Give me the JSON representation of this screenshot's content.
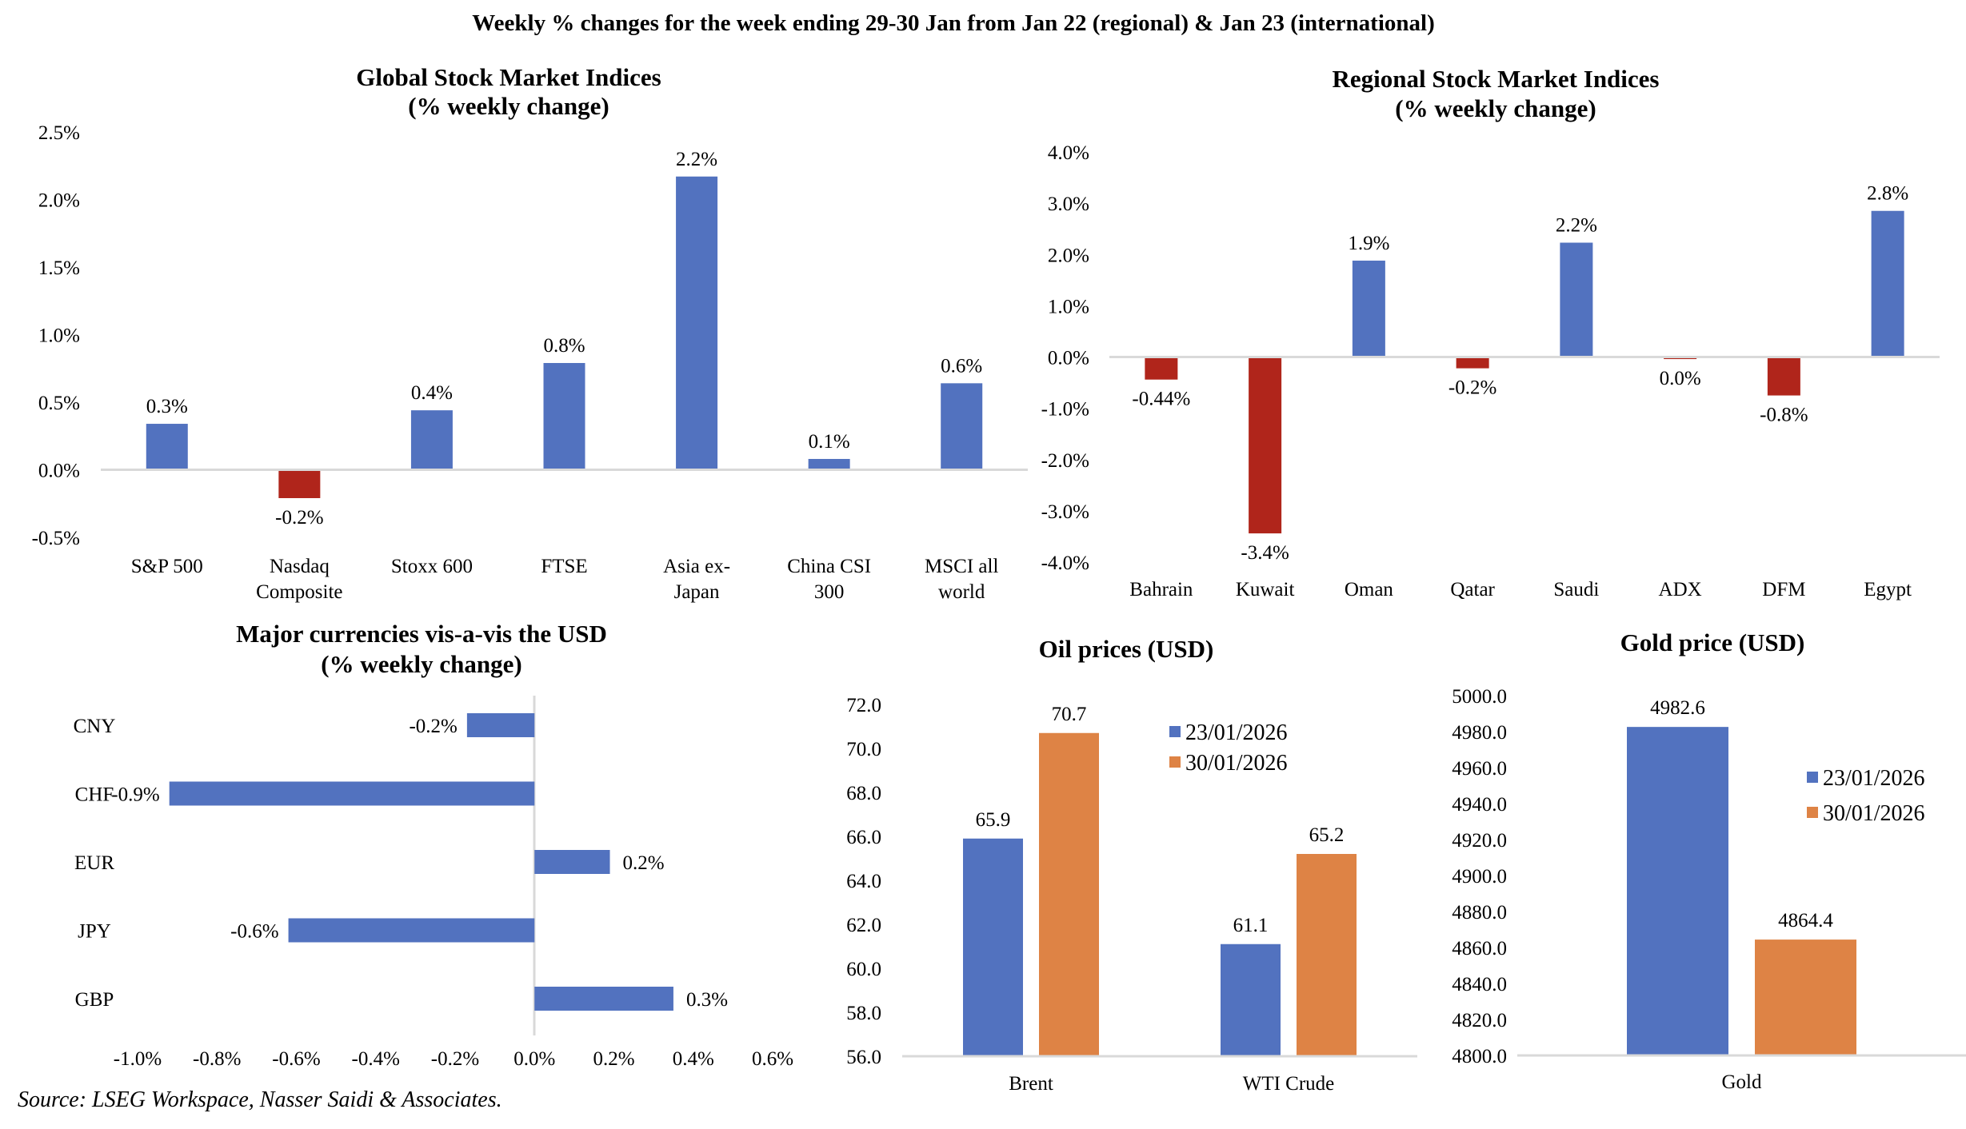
{
  "page": {
    "title": "Weekly % changes for the week ending 29-30 Jan from Jan 22 (regional) & Jan 23 (international)",
    "source": "Source: LSEG Workspace, Nasser Saidi & Associates."
  },
  "colors": {
    "positive": "#5272BF",
    "negative": "#B0251B",
    "series_1": "#5272BF",
    "series_2": "#DE8345",
    "axis": "#D9D9D9"
  },
  "chart_data": [
    {
      "id": "global",
      "type": "bar",
      "title": [
        "Global Stock Market Indices",
        "(% weekly change)"
      ],
      "categories": [
        [
          "S&P 500"
        ],
        [
          "Nasdaq",
          "Composite"
        ],
        [
          "Stoxx 600"
        ],
        [
          "FTSE"
        ],
        [
          "Asia ex-",
          "Japan"
        ],
        [
          "China CSI",
          "300"
        ],
        [
          "MSCI all",
          "world"
        ]
      ],
      "values": [
        0.34,
        -0.21,
        0.44,
        0.79,
        2.17,
        0.08,
        0.64
      ],
      "data_labels": [
        "0.3%",
        "-0.2%",
        "0.4%",
        "0.8%",
        "2.2%",
        "0.1%",
        "0.6%"
      ],
      "ylim": [
        -0.5,
        2.5
      ],
      "yticks": [
        2.5,
        2.0,
        1.5,
        1.0,
        0.5,
        0.0,
        -0.5
      ],
      "ytick_labels": [
        "2.5%",
        "2.0%",
        "1.5%",
        "1.0%",
        "0.5%",
        "0.0%",
        "-0.5%"
      ],
      "xlabel": "",
      "ylabel": "",
      "grid": false,
      "legend": "none"
    },
    {
      "id": "regional",
      "type": "bar",
      "title": [
        "Regional Stock Market Indices",
        "(% weekly change)"
      ],
      "categories": [
        [
          "Bahrain"
        ],
        [
          "Kuwait"
        ],
        [
          "Oman"
        ],
        [
          "Qatar"
        ],
        [
          "Saudi"
        ],
        [
          "ADX"
        ],
        [
          "DFM"
        ],
        [
          "Egypt"
        ]
      ],
      "values": [
        -0.44,
        -3.44,
        1.88,
        -0.22,
        2.23,
        -0.04,
        -0.75,
        2.85
      ],
      "data_labels": [
        "-0.44%",
        "-3.4%",
        "1.9%",
        "-0.2%",
        "2.2%",
        "0.0%",
        "-0.8%",
        "2.8%"
      ],
      "ylim": [
        -4.0,
        4.0
      ],
      "yticks": [
        4.0,
        3.0,
        2.0,
        1.0,
        0.0,
        -1.0,
        -2.0,
        -3.0,
        -4.0
      ],
      "ytick_labels": [
        "4.0%",
        "3.0%",
        "2.0%",
        "1.0%",
        "0.0%",
        "-1.0%",
        "-2.0%",
        "-3.0%",
        "-4.0%"
      ],
      "xlabel": "",
      "ylabel": "",
      "grid": false,
      "legend": "none"
    },
    {
      "id": "currencies",
      "type": "bar",
      "orientation": "horizontal",
      "title": [
        "Major currencies vis-a-vis the USD",
        "(% weekly change)"
      ],
      "categories": [
        "CNY",
        "CHF",
        "EUR",
        "JPY",
        "GBP"
      ],
      "values": [
        -0.17,
        -0.92,
        0.19,
        -0.62,
        0.35
      ],
      "data_labels": [
        "-0.2%",
        "-0.9%",
        "0.2%",
        "-0.6%",
        "0.3%"
      ],
      "xlim": [
        -1.0,
        0.6
      ],
      "xticks": [
        -1.0,
        -0.8,
        -0.6,
        -0.4,
        -0.2,
        0.0,
        0.2,
        0.4,
        0.6
      ],
      "xtick_labels": [
        "-1.0%",
        "-0.8%",
        "-0.6%",
        "-0.4%",
        "-0.2%",
        "0.0%",
        "0.2%",
        "0.4%",
        "0.6%"
      ],
      "xlabel": "",
      "ylabel": "",
      "grid": false,
      "legend": "none"
    },
    {
      "id": "oil",
      "type": "bar",
      "title": [
        "Oil prices (USD)"
      ],
      "categories": [
        "Brent",
        "WTI Crude"
      ],
      "series": [
        {
          "name": "23/01/2026",
          "values": [
            65.9,
            61.1
          ],
          "data_labels": [
            "65.9",
            "61.1"
          ]
        },
        {
          "name": "30/01/2026",
          "values": [
            70.7,
            65.2
          ],
          "data_labels": [
            "70.7",
            "65.2"
          ]
        }
      ],
      "ylim": [
        56.0,
        72.0
      ],
      "yticks": [
        72.0,
        70.0,
        68.0,
        66.0,
        64.0,
        62.0,
        60.0,
        58.0,
        56.0
      ],
      "ytick_labels": [
        "72.0",
        "70.0",
        "68.0",
        "66.0",
        "64.0",
        "62.0",
        "60.0",
        "58.0",
        "56.0"
      ],
      "xlabel": "",
      "ylabel": "",
      "grid": false,
      "legend": "top-right"
    },
    {
      "id": "gold",
      "type": "bar",
      "title": [
        "Gold price (USD)"
      ],
      "categories": [
        "Gold"
      ],
      "series": [
        {
          "name": "23/01/2026",
          "values": [
            4982.6
          ],
          "data_labels": [
            "4982.6"
          ]
        },
        {
          "name": "30/01/2026",
          "values": [
            4864.4
          ],
          "data_labels": [
            "4864.4"
          ]
        }
      ],
      "ylim": [
        4800.0,
        5000.0
      ],
      "yticks": [
        5000.0,
        4980.0,
        4960.0,
        4940.0,
        4920.0,
        4900.0,
        4880.0,
        4860.0,
        4840.0,
        4820.0,
        4800.0
      ],
      "ytick_labels": [
        "5000.0",
        "4980.0",
        "4960.0",
        "4940.0",
        "4920.0",
        "4900.0",
        "4880.0",
        "4860.0",
        "4840.0",
        "4820.0",
        "4800.0"
      ],
      "xlabel": "",
      "ylabel": "",
      "grid": false,
      "legend": "right"
    }
  ]
}
